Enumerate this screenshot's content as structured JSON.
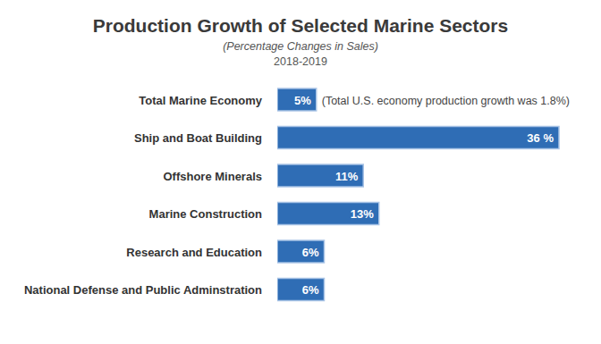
{
  "chart_data": {
    "type": "bar",
    "title": "Production Growth of Selected Marine Sectors",
    "subtitle": [
      "(Percentage Changes in Sales)",
      "2018-2019"
    ],
    "annotations": [
      "(Total U.S. economy production growth was 1.8%)"
    ],
    "categories": [
      "Total Marine Economy",
      "Ship and Boat Building",
      "Offshore Minerals",
      "Marine Construction",
      "Research and Education",
      "National Defense and Public Adminstration"
    ],
    "values": [
      5,
      36,
      11,
      13,
      6,
      6
    ],
    "value_labels": [
      "5%",
      "36 %",
      "11%",
      "13%",
      "6%",
      "6%"
    ],
    "color": "#2f6db5",
    "orientation": "horizontal",
    "data_labels": true,
    "tick_labels": "y",
    "grid": false,
    "xlim": [
      0,
      36
    ]
  }
}
